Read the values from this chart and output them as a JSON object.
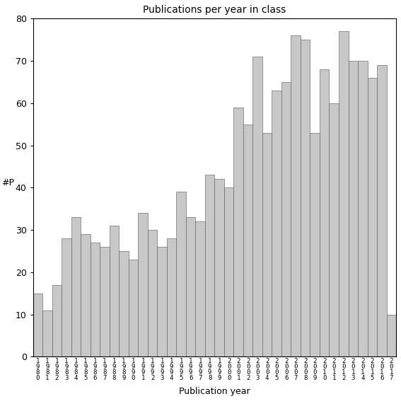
{
  "title": "Publications per year in class",
  "xlabel": "Publication year",
  "ylabel": "#P",
  "bar_color": "#c8c8c8",
  "bar_edgecolor": "#555555",
  "categories": [
    "1980",
    "1981",
    "1982",
    "1983",
    "1984",
    "1985",
    "1986",
    "1987",
    "1988",
    "1989",
    "1990",
    "1991",
    "1992",
    "1993",
    "1994",
    "1995",
    "1996",
    "1997",
    "1998",
    "1999",
    "2000",
    "2001",
    "2002",
    "2003",
    "2004",
    "2005",
    "2006",
    "2007",
    "2008",
    "2009",
    "2010",
    "2011",
    "2012",
    "2013",
    "2014",
    "2015",
    "2016",
    "2017"
  ],
  "values": [
    15,
    11,
    17,
    28,
    33,
    29,
    27,
    26,
    31,
    25,
    23,
    34,
    30,
    26,
    28,
    39,
    33,
    32,
    43,
    42,
    40,
    59,
    55,
    71,
    53,
    63,
    65,
    76,
    75,
    53,
    68,
    60,
    77,
    70,
    70,
    66,
    69,
    10
  ],
  "ylim": [
    0,
    80
  ],
  "yticks": [
    0,
    10,
    20,
    30,
    40,
    50,
    60,
    70,
    80
  ],
  "figsize": [
    5.67,
    5.67
  ],
  "dpi": 100
}
